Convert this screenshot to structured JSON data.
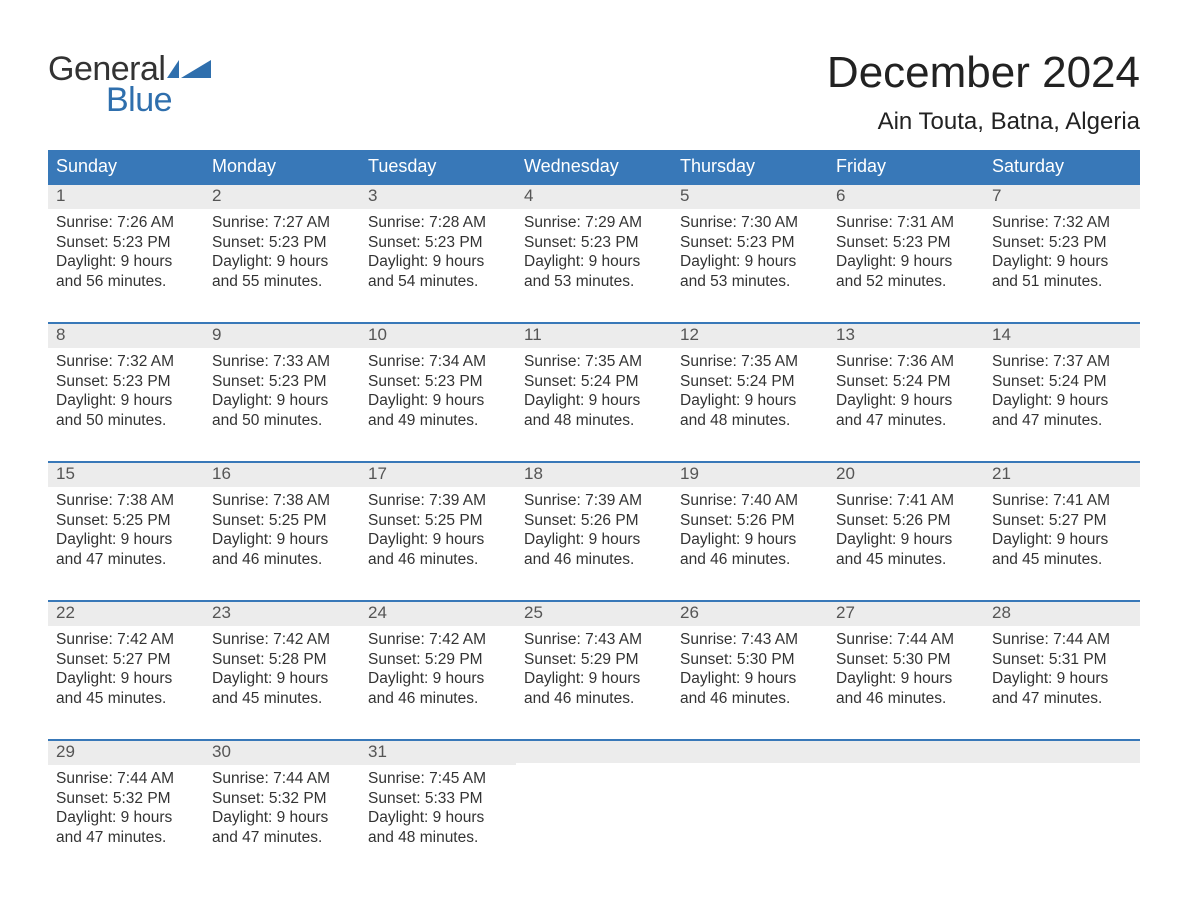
{
  "logo": {
    "general": "General",
    "blue": "Blue"
  },
  "title": "December 2024",
  "location": "Ain Touta, Batna, Algeria",
  "colors": {
    "header_bg": "#3878b8",
    "header_text": "#ffffff",
    "daynum_bg": "#ececec",
    "daynum_text": "#555555",
    "body_text": "#333333",
    "border": "#3878b8",
    "logo_blue": "#2f6fad"
  },
  "weekdays": [
    "Sunday",
    "Monday",
    "Tuesday",
    "Wednesday",
    "Thursday",
    "Friday",
    "Saturday"
  ],
  "weeks": [
    [
      {
        "n": "1",
        "sunrise": "Sunrise: 7:26 AM",
        "sunset": "Sunset: 5:23 PM",
        "d1": "Daylight: 9 hours",
        "d2": "and 56 minutes."
      },
      {
        "n": "2",
        "sunrise": "Sunrise: 7:27 AM",
        "sunset": "Sunset: 5:23 PM",
        "d1": "Daylight: 9 hours",
        "d2": "and 55 minutes."
      },
      {
        "n": "3",
        "sunrise": "Sunrise: 7:28 AM",
        "sunset": "Sunset: 5:23 PM",
        "d1": "Daylight: 9 hours",
        "d2": "and 54 minutes."
      },
      {
        "n": "4",
        "sunrise": "Sunrise: 7:29 AM",
        "sunset": "Sunset: 5:23 PM",
        "d1": "Daylight: 9 hours",
        "d2": "and 53 minutes."
      },
      {
        "n": "5",
        "sunrise": "Sunrise: 7:30 AM",
        "sunset": "Sunset: 5:23 PM",
        "d1": "Daylight: 9 hours",
        "d2": "and 53 minutes."
      },
      {
        "n": "6",
        "sunrise": "Sunrise: 7:31 AM",
        "sunset": "Sunset: 5:23 PM",
        "d1": "Daylight: 9 hours",
        "d2": "and 52 minutes."
      },
      {
        "n": "7",
        "sunrise": "Sunrise: 7:32 AM",
        "sunset": "Sunset: 5:23 PM",
        "d1": "Daylight: 9 hours",
        "d2": "and 51 minutes."
      }
    ],
    [
      {
        "n": "8",
        "sunrise": "Sunrise: 7:32 AM",
        "sunset": "Sunset: 5:23 PM",
        "d1": "Daylight: 9 hours",
        "d2": "and 50 minutes."
      },
      {
        "n": "9",
        "sunrise": "Sunrise: 7:33 AM",
        "sunset": "Sunset: 5:23 PM",
        "d1": "Daylight: 9 hours",
        "d2": "and 50 minutes."
      },
      {
        "n": "10",
        "sunrise": "Sunrise: 7:34 AM",
        "sunset": "Sunset: 5:23 PM",
        "d1": "Daylight: 9 hours",
        "d2": "and 49 minutes."
      },
      {
        "n": "11",
        "sunrise": "Sunrise: 7:35 AM",
        "sunset": "Sunset: 5:24 PM",
        "d1": "Daylight: 9 hours",
        "d2": "and 48 minutes."
      },
      {
        "n": "12",
        "sunrise": "Sunrise: 7:35 AM",
        "sunset": "Sunset: 5:24 PM",
        "d1": "Daylight: 9 hours",
        "d2": "and 48 minutes."
      },
      {
        "n": "13",
        "sunrise": "Sunrise: 7:36 AM",
        "sunset": "Sunset: 5:24 PM",
        "d1": "Daylight: 9 hours",
        "d2": "and 47 minutes."
      },
      {
        "n": "14",
        "sunrise": "Sunrise: 7:37 AM",
        "sunset": "Sunset: 5:24 PM",
        "d1": "Daylight: 9 hours",
        "d2": "and 47 minutes."
      }
    ],
    [
      {
        "n": "15",
        "sunrise": "Sunrise: 7:38 AM",
        "sunset": "Sunset: 5:25 PM",
        "d1": "Daylight: 9 hours",
        "d2": "and 47 minutes."
      },
      {
        "n": "16",
        "sunrise": "Sunrise: 7:38 AM",
        "sunset": "Sunset: 5:25 PM",
        "d1": "Daylight: 9 hours",
        "d2": "and 46 minutes."
      },
      {
        "n": "17",
        "sunrise": "Sunrise: 7:39 AM",
        "sunset": "Sunset: 5:25 PM",
        "d1": "Daylight: 9 hours",
        "d2": "and 46 minutes."
      },
      {
        "n": "18",
        "sunrise": "Sunrise: 7:39 AM",
        "sunset": "Sunset: 5:26 PM",
        "d1": "Daylight: 9 hours",
        "d2": "and 46 minutes."
      },
      {
        "n": "19",
        "sunrise": "Sunrise: 7:40 AM",
        "sunset": "Sunset: 5:26 PM",
        "d1": "Daylight: 9 hours",
        "d2": "and 46 minutes."
      },
      {
        "n": "20",
        "sunrise": "Sunrise: 7:41 AM",
        "sunset": "Sunset: 5:26 PM",
        "d1": "Daylight: 9 hours",
        "d2": "and 45 minutes."
      },
      {
        "n": "21",
        "sunrise": "Sunrise: 7:41 AM",
        "sunset": "Sunset: 5:27 PM",
        "d1": "Daylight: 9 hours",
        "d2": "and 45 minutes."
      }
    ],
    [
      {
        "n": "22",
        "sunrise": "Sunrise: 7:42 AM",
        "sunset": "Sunset: 5:27 PM",
        "d1": "Daylight: 9 hours",
        "d2": "and 45 minutes."
      },
      {
        "n": "23",
        "sunrise": "Sunrise: 7:42 AM",
        "sunset": "Sunset: 5:28 PM",
        "d1": "Daylight: 9 hours",
        "d2": "and 45 minutes."
      },
      {
        "n": "24",
        "sunrise": "Sunrise: 7:42 AM",
        "sunset": "Sunset: 5:29 PM",
        "d1": "Daylight: 9 hours",
        "d2": "and 46 minutes."
      },
      {
        "n": "25",
        "sunrise": "Sunrise: 7:43 AM",
        "sunset": "Sunset: 5:29 PM",
        "d1": "Daylight: 9 hours",
        "d2": "and 46 minutes."
      },
      {
        "n": "26",
        "sunrise": "Sunrise: 7:43 AM",
        "sunset": "Sunset: 5:30 PM",
        "d1": "Daylight: 9 hours",
        "d2": "and 46 minutes."
      },
      {
        "n": "27",
        "sunrise": "Sunrise: 7:44 AM",
        "sunset": "Sunset: 5:30 PM",
        "d1": "Daylight: 9 hours",
        "d2": "and 46 minutes."
      },
      {
        "n": "28",
        "sunrise": "Sunrise: 7:44 AM",
        "sunset": "Sunset: 5:31 PM",
        "d1": "Daylight: 9 hours",
        "d2": "and 47 minutes."
      }
    ],
    [
      {
        "n": "29",
        "sunrise": "Sunrise: 7:44 AM",
        "sunset": "Sunset: 5:32 PM",
        "d1": "Daylight: 9 hours",
        "d2": "and 47 minutes."
      },
      {
        "n": "30",
        "sunrise": "Sunrise: 7:44 AM",
        "sunset": "Sunset: 5:32 PM",
        "d1": "Daylight: 9 hours",
        "d2": "and 47 minutes."
      },
      {
        "n": "31",
        "sunrise": "Sunrise: 7:45 AM",
        "sunset": "Sunset: 5:33 PM",
        "d1": "Daylight: 9 hours",
        "d2": "and 48 minutes."
      },
      null,
      null,
      null,
      null
    ]
  ]
}
